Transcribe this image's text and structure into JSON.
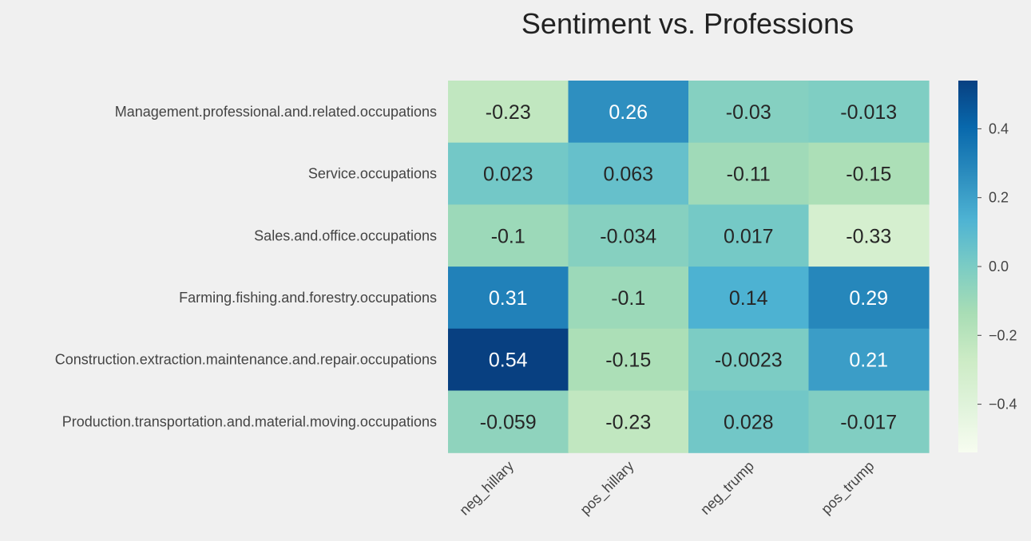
{
  "chart_data": {
    "type": "heatmap",
    "title": "Sentiment vs. Professions",
    "rows": [
      "Management.professional.and.related.occupations",
      "Service.occupations",
      "Sales.and.office.occupations",
      "Farming.fishing.and.forestry.occupations",
      "Construction.extraction.maintenance.and.repair.occupations",
      "Production.transportation.and.material.moving.occupations"
    ],
    "columns": [
      "neg_hillary",
      "pos_hillary",
      "neg_trump",
      "pos_trump"
    ],
    "values": [
      [
        -0.23,
        0.26,
        -0.03,
        -0.013
      ],
      [
        0.023,
        0.063,
        -0.11,
        -0.15
      ],
      [
        -0.1,
        -0.034,
        0.017,
        -0.33
      ],
      [
        0.31,
        -0.1,
        0.14,
        0.29
      ],
      [
        0.54,
        -0.15,
        -0.0023,
        0.21
      ],
      [
        -0.059,
        -0.23,
        0.028,
        -0.017
      ]
    ],
    "value_labels": [
      [
        "-0.23",
        "0.26",
        "-0.03",
        "-0.013"
      ],
      [
        "0.023",
        "0.063",
        "-0.11",
        "-0.15"
      ],
      [
        "-0.1",
        "-0.034",
        "0.017",
        "-0.33"
      ],
      [
        "0.31",
        "-0.1",
        "0.14",
        "0.29"
      ],
      [
        "0.54",
        "-0.15",
        "-0.0023",
        "0.21"
      ],
      [
        "-0.059",
        "-0.23",
        "0.028",
        "-0.017"
      ]
    ],
    "colorbar": {
      "colormap": "GnBu",
      "vmin": -0.54,
      "vmax": 0.54,
      "ticks": [
        0.4,
        0.2,
        0.0,
        -0.2,
        -0.4
      ],
      "tick_labels": [
        "0.4",
        "0.2",
        "0.0",
        "−0.2",
        "−0.4"
      ]
    },
    "colors": {
      "background": "#f0f0f0",
      "low": "#f7fcf0",
      "high": "#084081",
      "text_dark": "#262626",
      "text_light": "#ffffff"
    }
  }
}
